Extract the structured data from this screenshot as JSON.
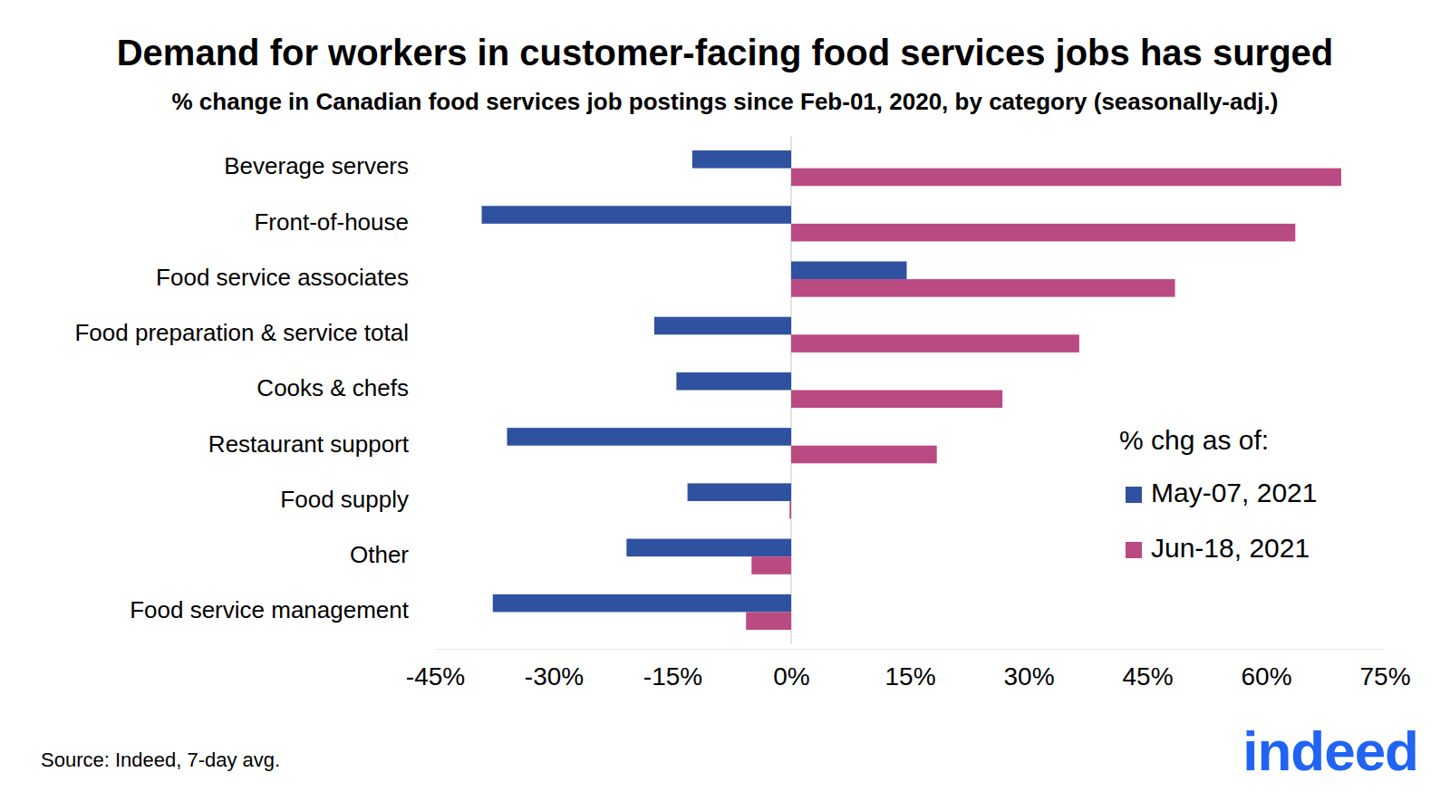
{
  "chart_data": {
    "type": "bar",
    "orientation": "horizontal",
    "title": "Demand for workers in customer-facing food services jobs has surged",
    "subtitle": "% change in Canadian food services job postings since Feb-01, 2020, by category (seasonally-adj.)",
    "categories": [
      "Beverage servers",
      "Front-of-house",
      "Food service associates",
      "Food preparation & service total",
      "Cooks & chefs",
      "Restaurant support",
      "Food supply",
      "Other",
      "Food service management"
    ],
    "series": [
      {
        "name": "May-07, 2021",
        "color": "#2f52a0",
        "values": [
          -12.5,
          -39.1,
          14.6,
          -17.3,
          -14.5,
          -35.9,
          -13.1,
          -20.8,
          -37.7
        ]
      },
      {
        "name": "Jun-18, 2021",
        "color": "#b94a82",
        "values": [
          69.5,
          63.7,
          48.5,
          36.4,
          26.7,
          18.4,
          -0.2,
          -5.0,
          -5.7
        ]
      }
    ],
    "xlim": [
      -45,
      75
    ],
    "xticks": [
      {
        "value": -45,
        "label": "-45%"
      },
      {
        "value": -30,
        "label": "-30%"
      },
      {
        "value": -15,
        "label": "-15%"
      },
      {
        "value": 0,
        "label": "0%"
      },
      {
        "value": 15,
        "label": "15%"
      },
      {
        "value": 30,
        "label": "30%"
      },
      {
        "value": 45,
        "label": "45%"
      },
      {
        "value": 60,
        "label": "60%"
      },
      {
        "value": 75,
        "label": "75%"
      }
    ],
    "grid": false,
    "legend": "right",
    "legend_title": "% chg as of:",
    "source": "Source: Indeed, 7-day avg.",
    "logo": "indeed"
  }
}
